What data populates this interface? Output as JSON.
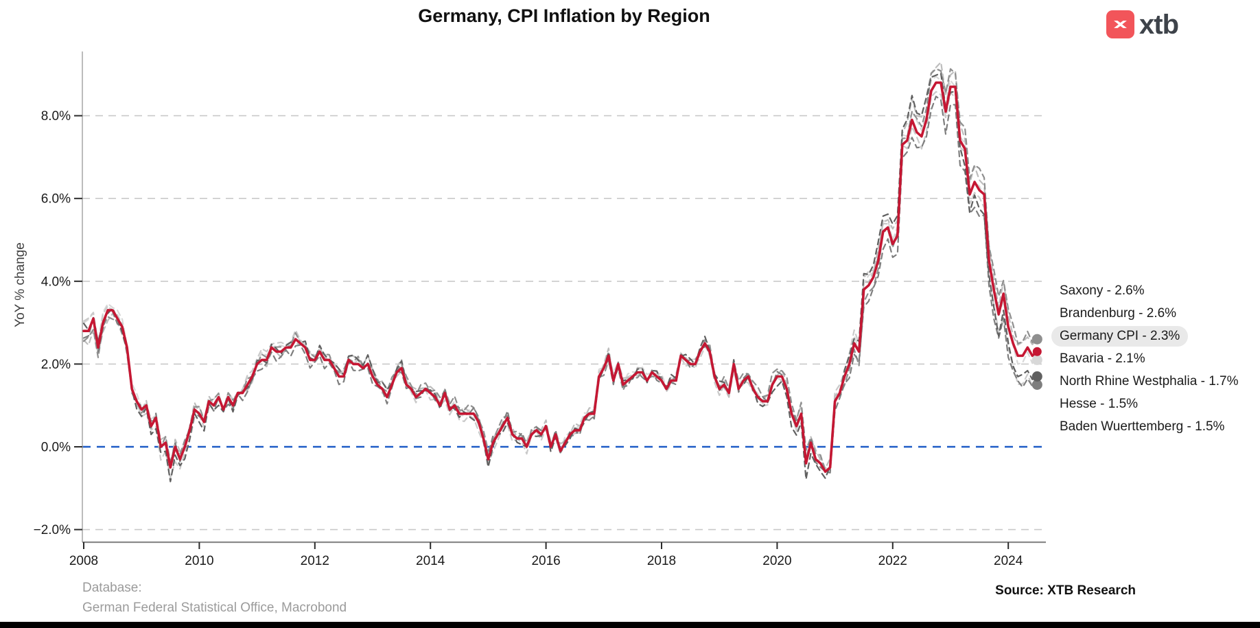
{
  "title": "Germany, CPI Inflation by Region",
  "logo": {
    "text": "xtb",
    "square_color": "#F2555A",
    "text_color": "#3E434A"
  },
  "footer": {
    "database_label": "Database:",
    "database_source": "German Federal Statistical Office, Macrobond",
    "source": "Source: XTB Research"
  },
  "chart_data": {
    "type": "line",
    "title": "Germany, CPI Inflation by Region",
    "xlabel": "",
    "ylabel": "YoY % change",
    "x_start": 2008.0,
    "x_step": 0.0833333,
    "x_range": [
      2008.0,
      2024.583
    ],
    "ylim": [
      -2.6,
      9.8
    ],
    "grid": "dashed-horizontal",
    "grid_color": "#C9C9C9",
    "zero_line": {
      "value": 0,
      "color": "#1E5BC6",
      "style": "dashed"
    },
    "x_ticks": [
      {
        "value": 2008,
        "label": "2008"
      },
      {
        "value": 2010,
        "label": "2010"
      },
      {
        "value": 2012,
        "label": "2012"
      },
      {
        "value": 2014,
        "label": "2014"
      },
      {
        "value": 2016,
        "label": "2016"
      },
      {
        "value": 2018,
        "label": "2018"
      },
      {
        "value": 2020,
        "label": "2020"
      },
      {
        "value": 2022,
        "label": "2022"
      },
      {
        "value": 2024,
        "label": "2024"
      }
    ],
    "y_ticks": [
      {
        "value": -2,
        "label": "−2.0%"
      },
      {
        "value": 0,
        "label": "0.0%"
      },
      {
        "value": 2,
        "label": "2.0%"
      },
      {
        "value": 4,
        "label": "4.0%"
      },
      {
        "value": 6,
        "label": "6.0%"
      },
      {
        "value": 8,
        "label": "8.0%"
      }
    ],
    "legend_position": "right-outside",
    "offset_years": [
      2008,
      2009.5,
      2011,
      2013,
      2015,
      2017,
      2019,
      2020.5,
      2021.5,
      2022.5,
      2023.3,
      2024.0,
      2024.583
    ],
    "series": [
      {
        "name": "Saxony",
        "slug": "saxony",
        "legend_label": "Saxony - 2.6%",
        "end_value": 2.6,
        "color": "#8F8F8F",
        "line_style": "dashed",
        "highlighted": false,
        "offsets_vs_germany": [
          -0.25,
          0.1,
          0.05,
          0.1,
          0.15,
          -0.1,
          0.1,
          0.25,
          -0.3,
          0.3,
          0.45,
          0.4,
          0.3
        ]
      },
      {
        "name": "Brandenburg",
        "slug": "brandenburg",
        "legend_label": "Brandenburg - 2.6%",
        "end_value": 2.6,
        "color": "#BDBDBD",
        "line_style": "dashed",
        "highlighted": false,
        "offsets_vs_germany": [
          -0.3,
          0.15,
          -0.1,
          0.15,
          0.05,
          0.1,
          -0.05,
          0.15,
          0.1,
          0.5,
          0.3,
          0.25,
          0.3
        ]
      },
      {
        "name": "Germany CPI",
        "slug": "germany-cpi",
        "legend_label": "Germany CPI - 2.3%",
        "end_value": 2.3,
        "color": "#C51733",
        "line_style": "solid",
        "highlighted": true,
        "values": [
          2.8,
          2.8,
          3.1,
          2.4,
          3.0,
          3.3,
          3.3,
          3.1,
          2.9,
          2.4,
          1.4,
          1.1,
          0.9,
          1.0,
          0.5,
          0.7,
          0.0,
          0.1,
          -0.5,
          0.0,
          -0.3,
          0.0,
          0.4,
          0.9,
          0.8,
          0.6,
          1.1,
          1.0,
          1.2,
          0.9,
          1.2,
          1.0,
          1.3,
          1.3,
          1.5,
          1.7,
          2.0,
          2.1,
          2.1,
          2.4,
          2.3,
          2.3,
          2.4,
          2.4,
          2.6,
          2.5,
          2.4,
          2.1,
          2.1,
          2.3,
          2.1,
          2.1,
          1.9,
          1.7,
          1.7,
          2.1,
          2.0,
          2.0,
          1.9,
          2.0,
          1.7,
          1.5,
          1.4,
          1.2,
          1.5,
          1.8,
          1.9,
          1.5,
          1.4,
          1.2,
          1.3,
          1.4,
          1.3,
          1.2,
          1.0,
          1.3,
          0.9,
          1.0,
          0.8,
          0.8,
          0.8,
          0.8,
          0.6,
          0.2,
          -0.3,
          0.1,
          0.3,
          0.5,
          0.7,
          0.3,
          0.2,
          0.2,
          0.0,
          0.3,
          0.4,
          0.3,
          0.5,
          0.0,
          0.3,
          -0.1,
          0.1,
          0.3,
          0.4,
          0.4,
          0.7,
          0.8,
          0.8,
          1.7,
          1.9,
          2.2,
          1.6,
          2.0,
          1.5,
          1.6,
          1.7,
          1.8,
          1.8,
          1.6,
          1.8,
          1.7,
          1.6,
          1.4,
          1.6,
          1.6,
          2.2,
          2.1,
          2.0,
          2.0,
          2.3,
          2.5,
          2.3,
          1.7,
          1.4,
          1.5,
          1.3,
          2.0,
          1.4,
          1.6,
          1.7,
          1.4,
          1.2,
          1.1,
          1.1,
          1.5,
          1.7,
          1.7,
          1.4,
          0.8,
          0.5,
          0.8,
          -0.4,
          0.1,
          -0.3,
          -0.4,
          -0.6,
          -0.5,
          1.1,
          1.3,
          1.7,
          2.0,
          2.5,
          2.3,
          3.8,
          3.9,
          4.1,
          4.5,
          5.2,
          5.3,
          4.9,
          5.1,
          7.3,
          7.4,
          7.9,
          7.6,
          7.5,
          7.9,
          8.6,
          8.8,
          8.8,
          8.1,
          8.7,
          8.7,
          7.4,
          7.2,
          6.1,
          6.4,
          6.2,
          6.1,
          4.5,
          3.8,
          3.2,
          3.7,
          2.9,
          2.5,
          2.2,
          2.2,
          2.4,
          2.2,
          2.3
        ]
      },
      {
        "name": "Bavaria",
        "slug": "bavaria",
        "legend_label": "Bavaria - 2.1%",
        "end_value": 2.1,
        "color": "#D8D8D8",
        "line_style": "dashed",
        "highlighted": false,
        "offsets_vs_germany": [
          0.2,
          0.05,
          0.1,
          0.05,
          0.0,
          0.1,
          0.05,
          -0.05,
          0.15,
          0.2,
          0.05,
          -0.1,
          -0.2
        ]
      },
      {
        "name": "North Rhine Westphalia",
        "slug": "north-rhine-westphalia",
        "legend_label": "North Rhine Westphalia - 1.7%",
        "end_value": 1.7,
        "color": "#606060",
        "line_style": "dashed",
        "highlighted": false,
        "offsets_vs_germany": [
          0.1,
          -0.25,
          0.0,
          0.15,
          -0.1,
          0.0,
          0.1,
          -0.3,
          0.3,
          0.55,
          -0.4,
          -0.45,
          -0.6
        ]
      },
      {
        "name": "Hesse",
        "slug": "hesse",
        "legend_label": "Hesse - 1.5%",
        "end_value": 1.5,
        "color": "#7E7E7E",
        "line_style": "dashed",
        "highlighted": false,
        "offsets_vs_germany": [
          -0.1,
          0.05,
          -0.15,
          -0.1,
          0.1,
          -0.05,
          0.0,
          0.05,
          -0.35,
          -0.35,
          -0.55,
          -0.65,
          -0.8
        ]
      },
      {
        "name": "Baden Wuerttemberg",
        "slug": "baden-wuerttemberg",
        "legend_label": "Baden Wuerttemberg - 1.5%",
        "end_value": 1.5,
        "color": "#CACACA",
        "line_style": "dashed",
        "highlighted": false,
        "offsets_vs_germany": [
          0.25,
          -0.3,
          0.2,
          0.0,
          -0.15,
          0.05,
          -0.1,
          0.0,
          0.3,
          -0.25,
          -0.15,
          -0.55,
          -0.8
        ]
      }
    ]
  }
}
